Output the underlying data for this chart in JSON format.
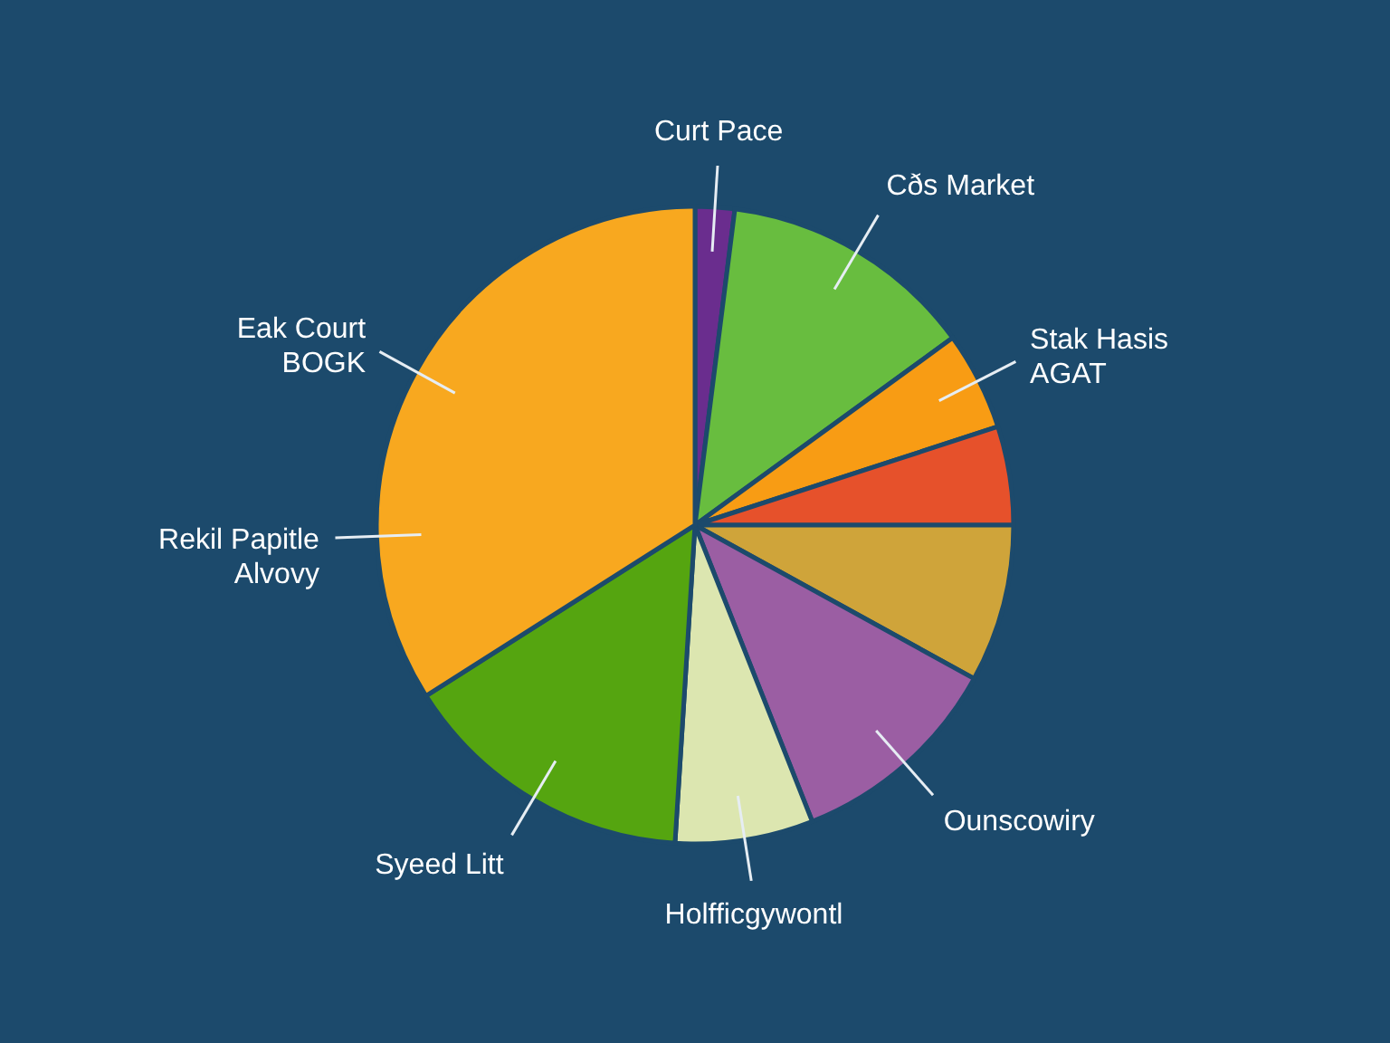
{
  "chart_data": {
    "type": "pie",
    "categories": [
      "Curt Pace",
      "Cðs Market",
      "Stak Hasis\nAGAT",
      null,
      null,
      "Ounscowiry",
      "Holfficgywontl",
      "Syeed Litt",
      "Eak Court\nBOGK"
    ],
    "values": [
      2,
      13,
      5,
      5,
      8,
      11,
      7,
      15,
      34
    ],
    "colors": [
      "#6a2d8e",
      "#68bd3f",
      "#f89c14",
      "#e6512b",
      "#cfa43a",
      "#9b5ea3",
      "#dce6b0",
      "#55a510",
      "#f8a81f"
    ],
    "annotations": [
      "Rekil Papitle\nAlvovy"
    ]
  }
}
